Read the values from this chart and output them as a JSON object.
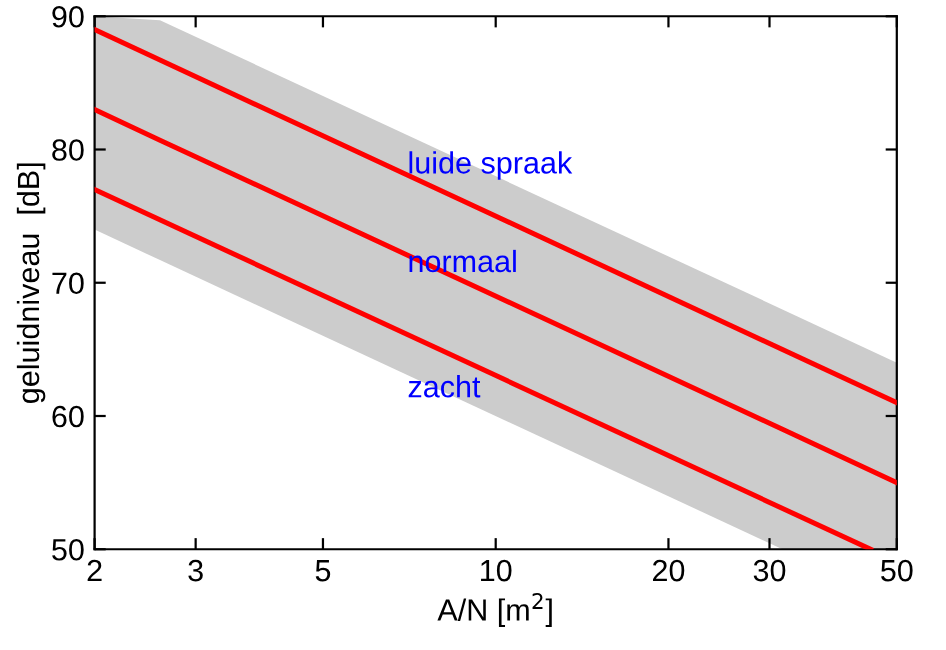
{
  "chart_data": {
    "type": "line",
    "xlabel": "A/N [m$^{2}$]",
    "ylabel": "geluidniveau  [dB]",
    "log": "x",
    "xlim": [
      2,
      50
    ],
    "xticks": [
      2,
      3,
      5,
      10,
      20,
      30,
      50
    ],
    "ylim": [
      50,
      90
    ],
    "yticks": [
      50,
      60,
      70,
      80,
      90
    ],
    "grid": false,
    "marker": "none",
    "line_style": "solid",
    "series": [
      {
        "name": "luide spraak",
        "color": "#ff0000",
        "x": [
          2,
          50
        ],
        "values": [
          89,
          61
        ]
      },
      {
        "name": "normaal",
        "color": "#ff0000",
        "x": [
          2,
          2.6,
          31.6,
          50
        ],
        "values": [
          83,
          80.7,
          59,
          55
        ],
        "lower": [
          74,
          71.7,
          50,
          50
        ],
        "upper": [
          90,
          89.7,
          68,
          64
        ]
      },
      {
        "name": "zacht",
        "color": "#ff0000",
        "x": [
          2,
          45
        ],
        "values": [
          77,
          50
        ]
      }
    ]
  }
}
